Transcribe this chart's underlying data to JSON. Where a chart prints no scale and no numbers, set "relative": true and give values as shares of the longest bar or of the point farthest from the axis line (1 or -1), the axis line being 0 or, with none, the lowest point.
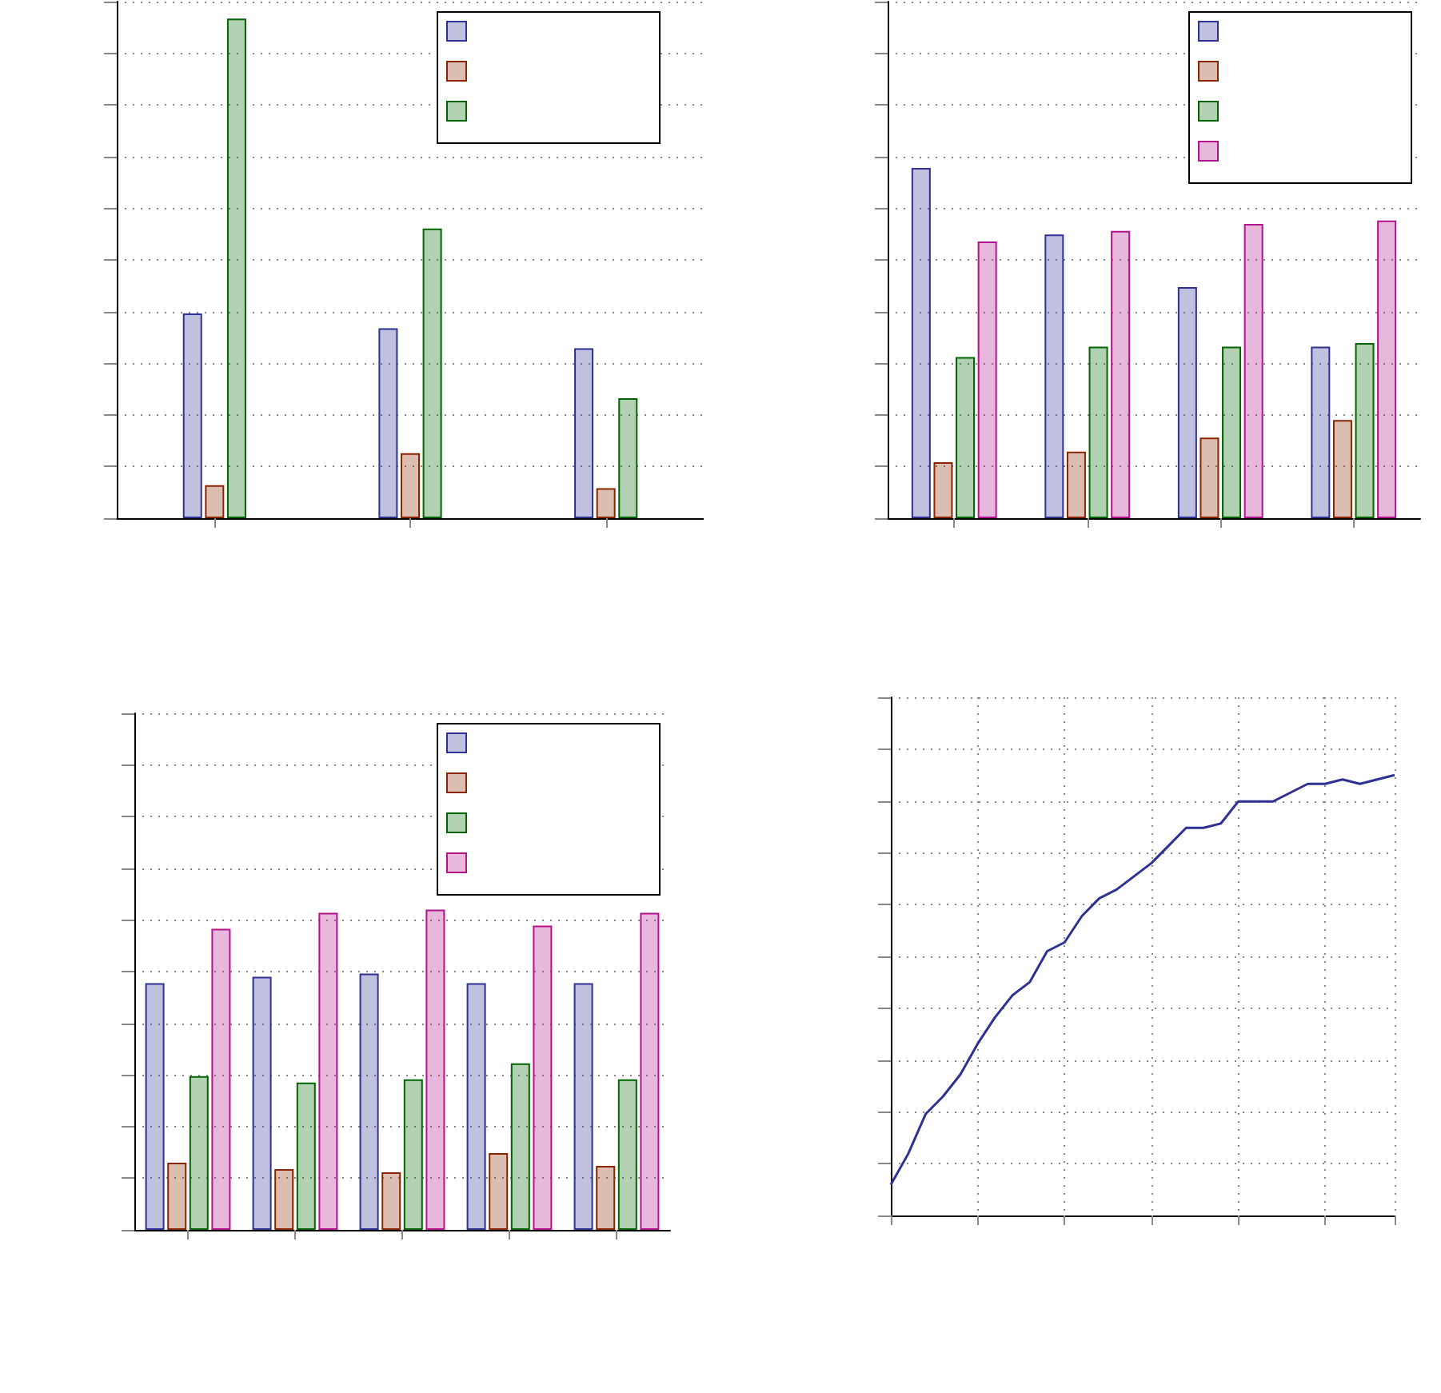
{
  "chart_data": [
    {
      "type": "bar",
      "relative": true,
      "categories": [
        null,
        null,
        null
      ],
      "grid": "y",
      "series": [
        {
          "color": "#2e3192",
          "values": [
            0.41,
            0.38,
            0.34
          ]
        },
        {
          "color": "#8b2500",
          "values": [
            0.066,
            0.13,
            0.06
          ]
        },
        {
          "color": "#006400",
          "values": [
            1,
            0.58,
            0.24
          ]
        }
      ]
    },
    {
      "type": "bar",
      "relative": true,
      "categories": [
        null,
        null,
        null,
        null
      ],
      "grid": "y",
      "series": [
        {
          "color": "#2e3192",
          "values": [
            1,
            0.81,
            0.66,
            0.49
          ]
        },
        {
          "color": "#8b2500",
          "values": [
            0.16,
            0.19,
            0.23,
            0.28
          ]
        },
        {
          "color": "#006400",
          "values": [
            0.46,
            0.49,
            0.49,
            0.5
          ]
        },
        {
          "color": "#b4128c",
          "values": [
            0.79,
            0.82,
            0.84,
            0.85
          ]
        }
      ]
    },
    {
      "type": "bar",
      "relative": true,
      "categories": [
        null,
        null,
        null,
        null,
        null
      ],
      "grid": "y",
      "series": [
        {
          "color": "#2e3192",
          "values": [
            0.77,
            0.79,
            0.8,
            0.77,
            0.77
          ]
        },
        {
          "color": "#8b2500",
          "values": [
            0.21,
            0.19,
            0.18,
            0.24,
            0.2
          ]
        },
        {
          "color": "#006400",
          "values": [
            0.48,
            0.46,
            0.47,
            0.52,
            0.47
          ]
        },
        {
          "color": "#b4128c",
          "values": [
            0.94,
            0.99,
            1,
            0.95,
            0.99
          ]
        }
      ]
    },
    {
      "type": "line",
      "relative": true,
      "categories": [
        null,
        null,
        null,
        null,
        null,
        null,
        null,
        null,
        null,
        null,
        null,
        null,
        null,
        null,
        null,
        null,
        null,
        null,
        null,
        null,
        null,
        null,
        null,
        null,
        null,
        null,
        null,
        null,
        null,
        null
      ],
      "grid": true,
      "marker": "none",
      "line_style": "solid",
      "series": [
        {
          "color": "#2e3192",
          "values": [
            0.07,
            0.14,
            0.23,
            0.27,
            0.32,
            0.39,
            0.45,
            0.5,
            0.53,
            0.6,
            0.62,
            0.68,
            0.72,
            0.74,
            0.77,
            0.8,
            0.84,
            0.88,
            0.88,
            0.89,
            0.94,
            0.94,
            0.94,
            0.96,
            0.98,
            0.98,
            0.99,
            0.98,
            0.99,
            1
          ]
        }
      ]
    }
  ]
}
